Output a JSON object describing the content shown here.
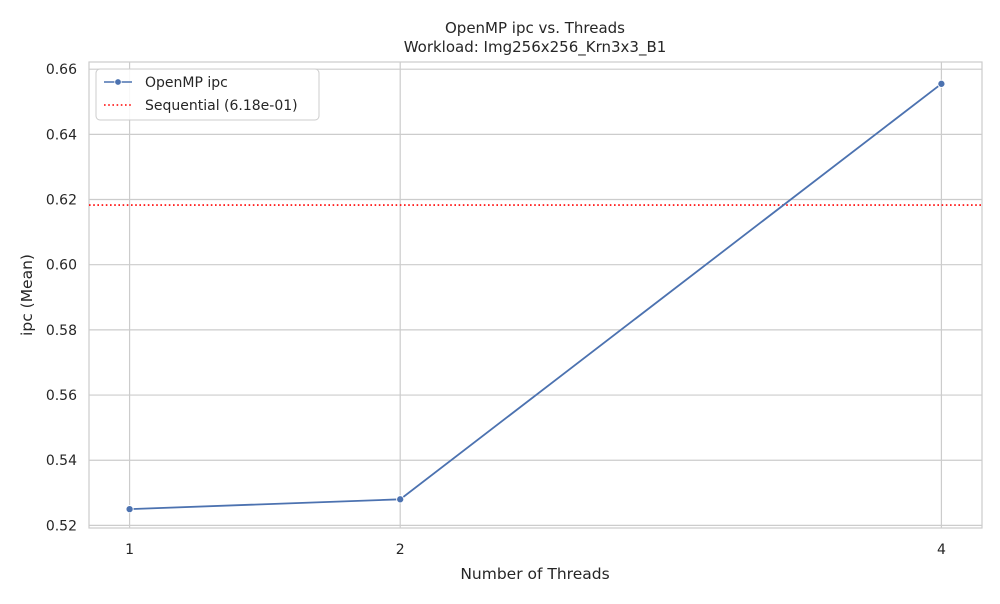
{
  "chart_data": {
    "type": "line",
    "title": "OpenMP ipc vs. Threads",
    "subtitle": "Workload: Img256x256_Krn3x3_B1",
    "xlabel": "Number of Threads",
    "ylabel": "ipc (Mean)",
    "x": [
      1,
      2,
      4
    ],
    "x_ticks": [
      "1",
      "2",
      "4"
    ],
    "xlim": [
      0.85,
      4.15
    ],
    "ylim": [
      0.5192,
      0.6622
    ],
    "y_ticks": [
      "0.52",
      "0.54",
      "0.56",
      "0.58",
      "0.60",
      "0.62",
      "0.64",
      "0.66"
    ],
    "y_tick_values": [
      0.52,
      0.54,
      0.56,
      0.58,
      0.6,
      0.62,
      0.64,
      0.66
    ],
    "series": [
      {
        "name": "OpenMP ipc",
        "values": [
          0.525,
          0.528,
          0.6555
        ],
        "color": "#4c72b0",
        "marker": "circle"
      }
    ],
    "reference_lines": [
      {
        "name": "Sequential (6.18e-01)",
        "value": 0.6183,
        "color": "#ff0000",
        "style": "dotted"
      }
    ],
    "grid": true,
    "legend_position": "top-left",
    "colors": {
      "grid": "#cccccc",
      "frame": "#cccccc",
      "text": "#262626"
    }
  }
}
